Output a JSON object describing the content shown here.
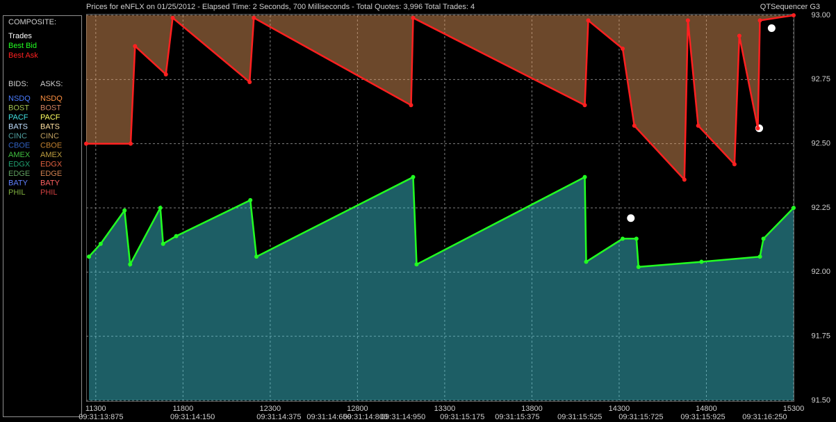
{
  "chart_data": {
    "type": "line",
    "title": "Prices for  eNFLX  on  01/25/2012  -  Elapsed Time: 2 Seconds, 700 Milliseconds  -  Total Quotes: 3,996  Total Trades: 4",
    "app_name": "QTSequencer G3",
    "composite_label": "COMPOSITE:",
    "bids_label": "BIDS:",
    "asks_label": "ASKS:",
    "xlim": [
      11245,
      15300
    ],
    "xticks": [
      11300,
      11800,
      12300,
      12800,
      13300,
      13800,
      14300,
      14800,
      15300
    ],
    "time_ticks": [
      {
        "value": 11330,
        "label": "09:31:13:875"
      },
      {
        "value": 11855,
        "label": "09:31:14:150"
      },
      {
        "value": 12350,
        "label": "09:31:14:375"
      },
      {
        "value": 12637,
        "label": "09:31:14:650"
      },
      {
        "value": 12846,
        "label": "09:31:14:800"
      },
      {
        "value": 13062,
        "label": "09:31:14:950"
      },
      {
        "value": 13401,
        "label": "09:31:15:175"
      },
      {
        "value": 13716,
        "label": "09:31:15:375"
      },
      {
        "value": 14074,
        "label": "09:31:15:525"
      },
      {
        "value": 14425,
        "label": "09:31:15:725"
      },
      {
        "value": 14780,
        "label": "09:31:15:925"
      },
      {
        "value": 15134,
        "label": "09:31:16:250"
      }
    ],
    "ylim": [
      91.5,
      93.0
    ],
    "yticks": [
      {
        "value": 93,
        "label": "93.00"
      },
      92.75,
      {
        "value": 92.5,
        "label": "92.50"
      },
      92.25,
      {
        "value": 92,
        "label": "92.00"
      },
      91.75,
      {
        "value": 91.5,
        "label": "91.50"
      }
    ],
    "grid": true,
    "series": [
      {
        "name": "Trades",
        "color": "#ffffff",
        "marker_only": true,
        "x": [
          14367,
          15103,
          15174
        ],
        "values": [
          92.21,
          92.56,
          92.95
        ]
      },
      {
        "name": "Best Bid",
        "color": "#22ff22",
        "fill": "#40d0e0",
        "x": [
          11261,
          11328,
          11465,
          11497,
          11670,
          11686,
          11761,
          12186,
          12221,
          13119,
          13139,
          14103,
          14111,
          14320,
          14399,
          14411,
          14772,
          15107,
          15127,
          15300
        ],
        "values": [
          92.06,
          92.11,
          92.24,
          92.03,
          92.25,
          92.11,
          92.14,
          92.28,
          92.06,
          92.37,
          92.03,
          92.37,
          92.04,
          92.13,
          92.13,
          92.02,
          92.04,
          92.06,
          92.13,
          92.25
        ]
      },
      {
        "name": "Best Ask",
        "color": "#ff2020",
        "fill": "#f0a060",
        "x": [
          11245,
          11500,
          11525,
          11702,
          11741,
          12182,
          12206,
          13107,
          13119,
          14103,
          14123,
          14320,
          14387,
          14674,
          14694,
          14753,
          14961,
          14989,
          15095,
          15107,
          15300
        ],
        "values": [
          92.5,
          92.5,
          92.88,
          92.77,
          92.99,
          92.74,
          92.99,
          92.65,
          92.99,
          92.65,
          92.98,
          92.87,
          92.57,
          92.36,
          92.98,
          92.57,
          92.42,
          92.92,
          92.56,
          92.98,
          93.0
        ]
      }
    ],
    "exchanges": [
      {
        "name": "NSDQ",
        "bid_color": "#4a7cff",
        "ask_color": "#ff9040"
      },
      {
        "name": "BOST",
        "bid_color": "#a0c050",
        "ask_color": "#d08060"
      },
      {
        "name": "PACF",
        "bid_color": "#40e0e0",
        "ask_color": "#ffff60"
      },
      {
        "name": "BATS",
        "bid_color": "#c0e0ff",
        "ask_color": "#ffe0a0"
      },
      {
        "name": "CINC",
        "bid_color": "#50a0a0",
        "ask_color": "#c0a060"
      },
      {
        "name": "CBOE",
        "bid_color": "#3060c0",
        "ask_color": "#c08030"
      },
      {
        "name": "AMEX",
        "bid_color": "#40c040",
        "ask_color": "#c0a040"
      },
      {
        "name": "EDGX",
        "bid_color": "#20a070",
        "ask_color": "#e06040"
      },
      {
        "name": "EDGE",
        "bid_color": "#60a060",
        "ask_color": "#d08050"
      },
      {
        "name": "BATY",
        "bid_color": "#6080ff",
        "ask_color": "#ff6060"
      },
      {
        "name": "PHIL",
        "bid_color": "#80b040",
        "ask_color": "#d04040"
      }
    ]
  }
}
